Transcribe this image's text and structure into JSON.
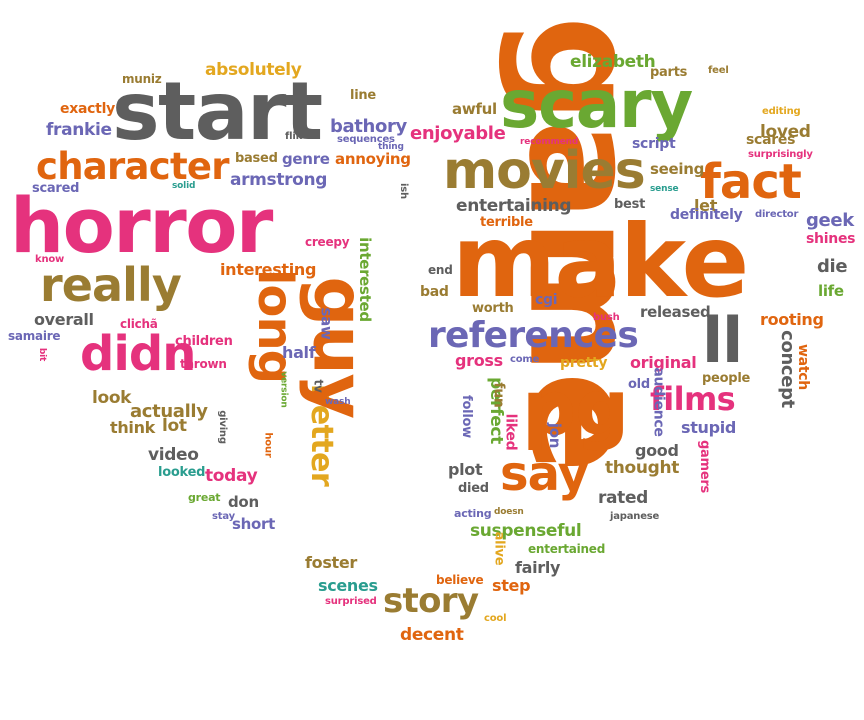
{
  "colors": {
    "orange": "#e0650f",
    "pink": "#e5327d",
    "green": "#6aa832",
    "gray": "#5e5e5e",
    "purple": "#6b67b5",
    "olive": "#9a7c32",
    "gold": "#e3a71f",
    "teal": "#2a9d8f",
    "red": "#d94226"
  },
  "words": [
    {
      "text": "game",
      "color": "orange"
    },
    {
      "text": "make",
      "color": "orange"
    },
    {
      "text": "horror",
      "color": "pink"
    },
    {
      "text": "start",
      "color": "gray"
    },
    {
      "text": "scary",
      "color": "green"
    },
    {
      "text": "pg",
      "color": "orange"
    },
    {
      "text": "movies",
      "color": "olive"
    },
    {
      "text": "long",
      "color": "orange"
    },
    {
      "text": "really",
      "color": "olive"
    },
    {
      "text": "fact",
      "color": "orange"
    },
    {
      "text": "character",
      "color": "orange"
    },
    {
      "text": "references",
      "color": "purple"
    },
    {
      "text": "didn",
      "color": "pink"
    },
    {
      "text": "better",
      "color": "gold"
    },
    {
      "text": "say",
      "color": "orange"
    },
    {
      "text": "guy",
      "color": "orange"
    },
    {
      "text": "ll",
      "color": "gray"
    },
    {
      "text": "films",
      "color": "pink"
    },
    {
      "text": "story",
      "color": "olive"
    },
    {
      "text": "absolutely",
      "color": "gold"
    },
    {
      "text": "elizabeth",
      "color": "green"
    },
    {
      "text": "muniz",
      "color": "olive"
    },
    {
      "text": "exactly",
      "color": "orange"
    },
    {
      "text": "frankie",
      "color": "purple"
    },
    {
      "text": "line",
      "color": "olive"
    },
    {
      "text": "awful",
      "color": "olive"
    },
    {
      "text": "parts",
      "color": "olive"
    },
    {
      "text": "feel",
      "color": "olive"
    },
    {
      "text": "bathory",
      "color": "purple"
    },
    {
      "text": "enjoyable",
      "color": "pink"
    },
    {
      "text": "editing",
      "color": "gold"
    },
    {
      "text": "loved",
      "color": "olive"
    },
    {
      "text": "flik",
      "color": "gray"
    },
    {
      "text": "sequences",
      "color": "purple"
    },
    {
      "text": "thing",
      "color": "purple"
    },
    {
      "text": "recommend",
      "color": "pink"
    },
    {
      "text": "script",
      "color": "purple"
    },
    {
      "text": "scares",
      "color": "olive"
    },
    {
      "text": "surprisingly",
      "color": "pink"
    },
    {
      "text": "genre",
      "color": "purple"
    },
    {
      "text": "annoying",
      "color": "orange"
    },
    {
      "text": "based",
      "color": "olive"
    },
    {
      "text": "seeing",
      "color": "olive"
    },
    {
      "text": "armstrong",
      "color": "purple"
    },
    {
      "text": "scared",
      "color": "purple"
    },
    {
      "text": "solid",
      "color": "teal"
    },
    {
      "text": "ish",
      "color": "gray"
    },
    {
      "text": "entertaining",
      "color": "gray"
    },
    {
      "text": "let",
      "color": "olive"
    },
    {
      "text": "best",
      "color": "gray"
    },
    {
      "text": "sense",
      "color": "teal"
    },
    {
      "text": "terrible",
      "color": "orange"
    },
    {
      "text": "definitely",
      "color": "purple"
    },
    {
      "text": "director",
      "color": "purple"
    },
    {
      "text": "geek",
      "color": "purple"
    },
    {
      "text": "shines",
      "color": "pink"
    },
    {
      "text": "creepy",
      "color": "pink"
    },
    {
      "text": "know",
      "color": "pink"
    },
    {
      "text": "interesting",
      "color": "orange"
    },
    {
      "text": "end",
      "color": "gray"
    },
    {
      "text": "die",
      "color": "gray"
    },
    {
      "text": "life",
      "color": "green"
    },
    {
      "text": "interested",
      "color": "green"
    },
    {
      "text": "saw",
      "color": "purple"
    },
    {
      "text": "bad",
      "color": "olive"
    },
    {
      "text": "cgi",
      "color": "purple"
    },
    {
      "text": "worth",
      "color": "olive"
    },
    {
      "text": "bush",
      "color": "pink"
    },
    {
      "text": "released",
      "color": "gray"
    },
    {
      "text": "rooting",
      "color": "orange"
    },
    {
      "text": "overall",
      "color": "gray"
    },
    {
      "text": "samaire",
      "color": "purple"
    },
    {
      "text": "clichã",
      "color": "pink"
    },
    {
      "text": "children",
      "color": "pink"
    },
    {
      "text": "half",
      "color": "purple"
    },
    {
      "text": "gross",
      "color": "pink"
    },
    {
      "text": "come",
      "color": "purple"
    },
    {
      "text": "pretty",
      "color": "gold"
    },
    {
      "text": "original",
      "color": "pink"
    },
    {
      "text": "concept",
      "color": "gray"
    },
    {
      "text": "watch",
      "color": "orange"
    },
    {
      "text": "bit",
      "color": "pink"
    },
    {
      "text": "thrown",
      "color": "pink"
    },
    {
      "text": "tv",
      "color": "gray"
    },
    {
      "text": "people",
      "color": "olive"
    },
    {
      "text": "old",
      "color": "purple"
    },
    {
      "text": "version",
      "color": "green"
    },
    {
      "text": "wash",
      "color": "purple"
    },
    {
      "text": "look",
      "color": "olive"
    },
    {
      "text": "perfect",
      "color": "green"
    },
    {
      "text": "fun",
      "color": "olive"
    },
    {
      "text": "actually",
      "color": "olive"
    },
    {
      "text": "think",
      "color": "olive"
    },
    {
      "text": "lot",
      "color": "olive"
    },
    {
      "text": "giving",
      "color": "gray"
    },
    {
      "text": "hour",
      "color": "orange"
    },
    {
      "text": "follow",
      "color": "purple"
    },
    {
      "text": "liked",
      "color": "pink"
    },
    {
      "text": "jon",
      "color": "purple"
    },
    {
      "text": "audience",
      "color": "purple"
    },
    {
      "text": "good",
      "color": "gray"
    },
    {
      "text": "stupid",
      "color": "purple"
    },
    {
      "text": "video",
      "color": "gray"
    },
    {
      "text": "looked",
      "color": "teal"
    },
    {
      "text": "today",
      "color": "pink"
    },
    {
      "text": "plot",
      "color": "gray"
    },
    {
      "text": "thought",
      "color": "olive"
    },
    {
      "text": "gamers",
      "color": "pink"
    },
    {
      "text": "died",
      "color": "gray"
    },
    {
      "text": "rated",
      "color": "gray"
    },
    {
      "text": "great",
      "color": "green"
    },
    {
      "text": "don",
      "color": "gray"
    },
    {
      "text": "stay",
      "color": "purple"
    },
    {
      "text": "short",
      "color": "purple"
    },
    {
      "text": "acting",
      "color": "purple"
    },
    {
      "text": "doesn",
      "color": "olive"
    },
    {
      "text": "japanese",
      "color": "gray"
    },
    {
      "text": "suspenseful",
      "color": "green"
    },
    {
      "text": "entertained",
      "color": "green"
    },
    {
      "text": "alive",
      "color": "gold"
    },
    {
      "text": "foster",
      "color": "olive"
    },
    {
      "text": "fairly",
      "color": "gray"
    },
    {
      "text": "scenes",
      "color": "teal"
    },
    {
      "text": "believe",
      "color": "orange"
    },
    {
      "text": "step",
      "color": "orange"
    },
    {
      "text": "surprised",
      "color": "pink"
    },
    {
      "text": "cool",
      "color": "gold"
    },
    {
      "text": "decent",
      "color": "orange"
    }
  ]
}
